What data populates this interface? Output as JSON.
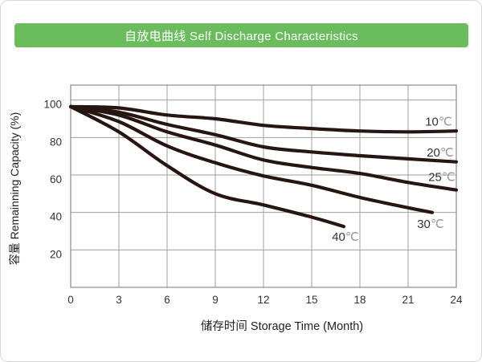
{
  "banner": {
    "title": "自放电曲线 Self Discharge Characteristics",
    "bg_color": "#6abc5c",
    "text_color": "#ffffff"
  },
  "chart_data": {
    "type": "line",
    "title": "自放电曲线 Self Discharge Characteristics",
    "xlabel": "储存时间 Storage Time (Month)",
    "ylabel": "容量 Remainning Capacity (%)",
    "xlim": [
      0,
      24
    ],
    "ylim": [
      0,
      108
    ],
    "x_ticks": [
      0,
      3,
      6,
      9,
      12,
      15,
      18,
      21,
      24
    ],
    "y_ticks": [
      100,
      80,
      60,
      40,
      20
    ],
    "grid": true,
    "legend_position": "inline-right-of-curves",
    "line_color": "#261511",
    "grid_color": "#9e9e9e",
    "frame_color": "#8c8c8c",
    "tick_color": "#333333",
    "unit_color": "#9a9a9a",
    "series": [
      {
        "name": "10℃",
        "label_pos": [
          22.9,
          88.5
        ],
        "points": [
          [
            0,
            96.5
          ],
          [
            3,
            95.8
          ],
          [
            6,
            92
          ],
          [
            9,
            90
          ],
          [
            12,
            86.5
          ],
          [
            15,
            84.8
          ],
          [
            18,
            83.5
          ],
          [
            21,
            83
          ],
          [
            24,
            83.5
          ]
        ]
      },
      {
        "name": "20℃",
        "label_pos": [
          23.0,
          72
        ],
        "points": [
          [
            0,
            96.5
          ],
          [
            3,
            93.5
          ],
          [
            6,
            87
          ],
          [
            9,
            81.5
          ],
          [
            12,
            75
          ],
          [
            15,
            72.3
          ],
          [
            18,
            70.3
          ],
          [
            21,
            68.6
          ],
          [
            24,
            67
          ]
        ]
      },
      {
        "name": "25℃",
        "label_pos": [
          23.1,
          59
        ],
        "points": [
          [
            0,
            96.5
          ],
          [
            3,
            92
          ],
          [
            6,
            83
          ],
          [
            9,
            76
          ],
          [
            12,
            68
          ],
          [
            15,
            64
          ],
          [
            18,
            60.8
          ],
          [
            21,
            56
          ],
          [
            24,
            52
          ]
        ]
      },
      {
        "name": "30℃",
        "label_pos": [
          22.4,
          33.8
        ],
        "points": [
          [
            0,
            96.5
          ],
          [
            3,
            88.5
          ],
          [
            6,
            75.5
          ],
          [
            9,
            66.5
          ],
          [
            12,
            59.5
          ],
          [
            15,
            54.5
          ],
          [
            18,
            48
          ],
          [
            21,
            42.5
          ],
          [
            22.5,
            40
          ]
        ]
      },
      {
        "name": "40℃",
        "label_pos": [
          17.1,
          27
        ],
        "points": [
          [
            0,
            96.5
          ],
          [
            3,
            83
          ],
          [
            6,
            65
          ],
          [
            9,
            50
          ],
          [
            12,
            44
          ],
          [
            15,
            37.5
          ],
          [
            17,
            32.5
          ]
        ]
      }
    ]
  }
}
